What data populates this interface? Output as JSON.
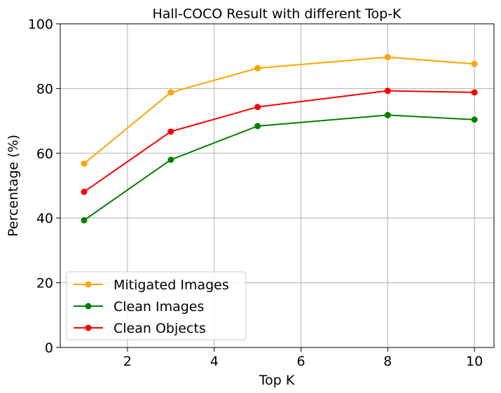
{
  "chart_data": {
    "type": "line",
    "title": "Hall-COCO Result with different Top-K",
    "xlabel": "Top K",
    "ylabel": "Percentage (%)",
    "x": [
      1,
      3,
      5,
      8,
      10
    ],
    "xlim": [
      0.45,
      10.45
    ],
    "ylim": [
      0,
      100
    ],
    "xticks": [
      2,
      4,
      6,
      8,
      10
    ],
    "yticks": [
      0,
      20,
      40,
      60,
      80,
      100
    ],
    "grid": true,
    "legend_position": "lower-left",
    "series": [
      {
        "name": "Mitigated Images",
        "color": "#ffa500",
        "values": [
          56.8,
          78.8,
          86.3,
          89.7,
          87.6
        ]
      },
      {
        "name": "Clean Images",
        "color": "#008000",
        "values": [
          39.3,
          58.0,
          68.4,
          71.8,
          70.4
        ]
      },
      {
        "name": "Clean Objects",
        "color": "#ff0000",
        "values": [
          48.1,
          66.7,
          74.3,
          79.3,
          78.8
        ]
      }
    ]
  }
}
